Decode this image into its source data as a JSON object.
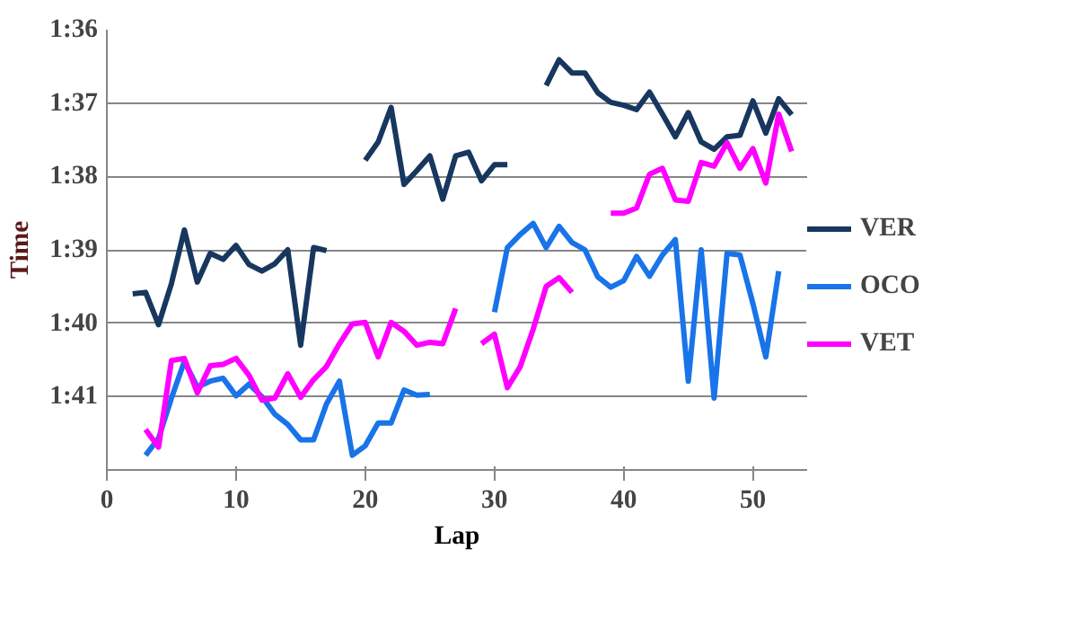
{
  "chart_data": {
    "type": "line",
    "xlabel": "Lap",
    "ylabel": "Time",
    "x": [
      2,
      3,
      4,
      5,
      6,
      7,
      8,
      9,
      10,
      11,
      12,
      13,
      14,
      15,
      16,
      17,
      18,
      19,
      20,
      21,
      22,
      23,
      24,
      25,
      26,
      27,
      28,
      29,
      30,
      31,
      32,
      33,
      34,
      35,
      36,
      37,
      38,
      39,
      40,
      41,
      42,
      43,
      44,
      45,
      46,
      47,
      48,
      49,
      50,
      51,
      52,
      53
    ],
    "series": [
      {
        "name": "VER",
        "color": "#17375e",
        "values": [
          99.6,
          99.58,
          100.02,
          99.46,
          98.73,
          99.44,
          99.05,
          99.13,
          98.94,
          99.2,
          99.29,
          99.19,
          99.0,
          100.3,
          98.97,
          99.01,
          null,
          null,
          97.78,
          97.53,
          97.06,
          98.11,
          97.92,
          97.72,
          98.31,
          97.72,
          97.67,
          98.06,
          97.84,
          97.84,
          null,
          null,
          96.76,
          96.41,
          96.59,
          96.59,
          96.86,
          96.99,
          97.03,
          97.09,
          96.85,
          97.15,
          97.46,
          97.13,
          97.53,
          97.63,
          97.46,
          97.44,
          96.97,
          97.41,
          96.94,
          97.16
        ]
      },
      {
        "name": "OCO",
        "color": "#1874e8",
        "values": [
          null,
          101.8,
          101.57,
          101.02,
          100.52,
          100.87,
          100.79,
          100.75,
          100.99,
          100.83,
          101.0,
          101.24,
          101.38,
          101.59,
          101.59,
          101.1,
          100.79,
          101.8,
          101.67,
          101.36,
          101.36,
          100.91,
          100.98,
          100.97,
          null,
          null,
          null,
          null,
          99.85,
          98.97,
          98.79,
          98.64,
          98.97,
          98.68,
          98.9,
          99.0,
          99.37,
          99.51,
          99.42,
          99.09,
          99.36,
          99.07,
          98.86,
          100.79,
          99.0,
          101.02,
          99.05,
          99.07,
          99.73,
          100.46,
          99.29,
          null
        ]
      },
      {
        "name": "VET",
        "color": "#ff00ff",
        "values": [
          null,
          101.45,
          101.69,
          100.51,
          100.48,
          100.95,
          100.58,
          100.56,
          100.48,
          100.71,
          101.05,
          101.02,
          100.69,
          101.01,
          100.77,
          100.59,
          100.28,
          100.01,
          99.99,
          100.46,
          99.99,
          100.11,
          100.3,
          100.26,
          100.28,
          99.8,
          null,
          100.28,
          100.15,
          100.88,
          100.59,
          100.08,
          99.5,
          99.38,
          99.58,
          null,
          null,
          98.5,
          98.5,
          98.43,
          97.97,
          97.89,
          98.32,
          98.34,
          97.81,
          97.86,
          97.54,
          97.89,
          97.62,
          98.09,
          97.15,
          97.66
        ]
      }
    ],
    "xlim": [
      0,
      54.2
    ],
    "xticks": [
      0,
      10,
      20,
      30,
      40,
      50
    ],
    "ylim": [
      102,
      96
    ],
    "yticks": [
      {
        "value": 96,
        "label": "1:36"
      },
      {
        "value": 97,
        "label": "1:37"
      },
      {
        "value": 98,
        "label": "1:38"
      },
      {
        "value": 99,
        "label": "1:39"
      },
      {
        "value": 100,
        "label": "1:40"
      },
      {
        "value": 101,
        "label": "1:41"
      }
    ],
    "grid": "y",
    "legend": "right",
    "marker": "none",
    "line_style": "solid"
  }
}
